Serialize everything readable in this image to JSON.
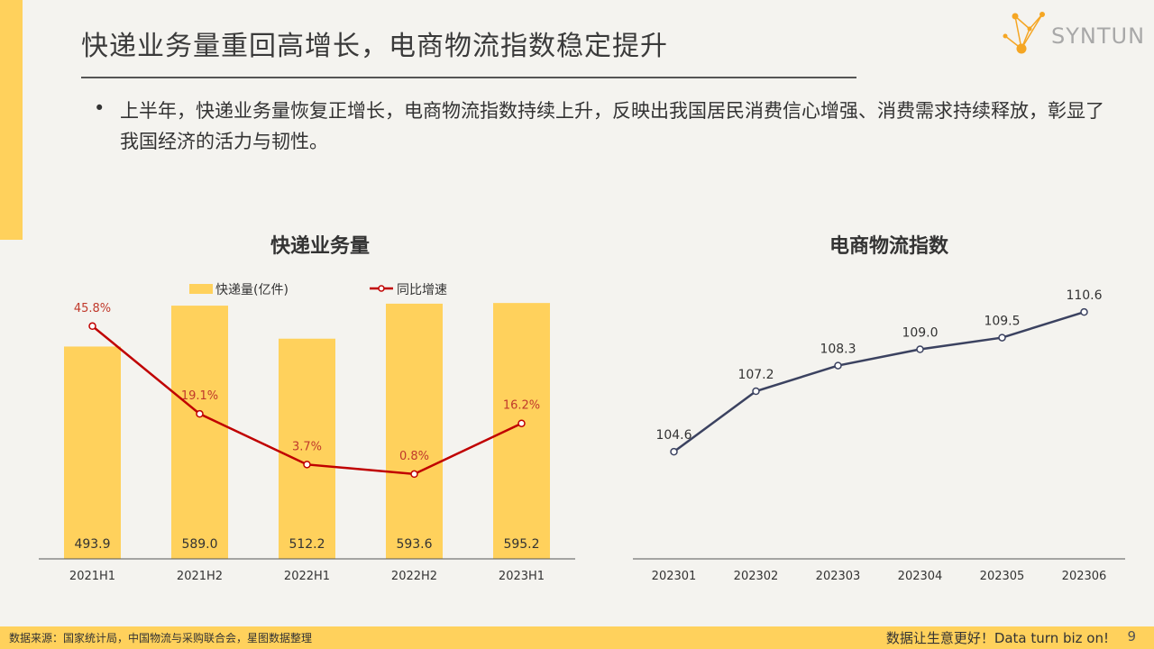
{
  "header": {
    "title": "快递业务量重回高增长，电商物流指数稳定提升",
    "logo_text": "SYNTUN"
  },
  "summary": {
    "bullet": "•",
    "text": "上半年，快递业务量恢复正增长，电商物流指数持续上升，反映出我国居民消费信心增强、消费需求持续释放，彰显了我国经济的活力与韧性。"
  },
  "colors": {
    "bar": "#ffd15c",
    "growth_line": "#c00000",
    "index_line": "#3b4260",
    "accent": "#ffd15c"
  },
  "chart_data": [
    {
      "type": "bar",
      "title": "快递业务量",
      "categories": [
        "2021H1",
        "2021H2",
        "2022H1",
        "2022H2",
        "2023H1"
      ],
      "series": [
        {
          "name": "快递量(亿件)",
          "type": "bar",
          "values": [
            493.9,
            589.0,
            512.2,
            593.6,
            595.2
          ],
          "labels": [
            "493.9",
            "589.0",
            "512.2",
            "593.6",
            "595.2"
          ]
        },
        {
          "name": "同比增速",
          "type": "line",
          "values": [
            45.8,
            19.1,
            3.7,
            0.8,
            16.2
          ],
          "labels": [
            "45.8%",
            "19.1%",
            "3.7%",
            "0.8%",
            "16.2%"
          ]
        }
      ],
      "legend": "top",
      "ylim": [
        0,
        650
      ],
      "y2lim": [
        -25,
        60
      ],
      "grid": false
    },
    {
      "type": "line",
      "title": "电商物流指数",
      "categories": [
        "202301",
        "202302",
        "202303",
        "202304",
        "202305",
        "202306"
      ],
      "values": [
        104.6,
        107.2,
        108.3,
        109.0,
        109.5,
        110.6
      ],
      "labels": [
        "104.6",
        "107.2",
        "108.3",
        "109.0",
        "109.5",
        "110.6"
      ],
      "ylim": [
        100,
        112
      ],
      "grid": false
    }
  ],
  "footer": {
    "source": "数据来源：国家统计局，中国物流与采购联合会，星图数据整理",
    "slogan": "数据让生意更好！Data turn biz on!",
    "page_number": "9"
  }
}
